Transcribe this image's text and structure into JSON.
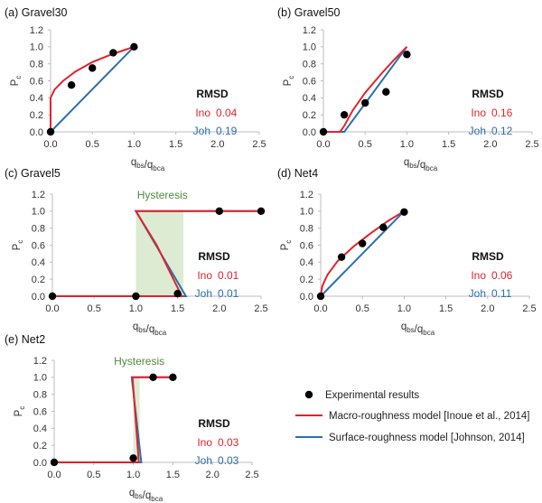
{
  "colors": {
    "ino": "#e0232b",
    "joh": "#2a6fad",
    "points": "#000000",
    "axis": "#bdbdbd",
    "hysteresis_fill": "#dcebd2",
    "hysteresis_text": "#4f8a3c"
  },
  "chart_data": [
    {
      "id": "a",
      "type": "line",
      "panel_label": "(a) Gravel30",
      "xlabel": "q_bs/q_bca",
      "ylabel": "P_c",
      "xlim": [
        0,
        2.5
      ],
      "ylim": [
        0,
        1.2
      ],
      "xticks": [
        "0.0",
        "0.5",
        "1.0",
        "1.5",
        "2.0",
        "2.5"
      ],
      "yticks": [
        "0.0",
        "0.2",
        "0.4",
        "0.6",
        "0.8",
        "1.0",
        "1.2"
      ],
      "experimental": [
        [
          0.0,
          0.0
        ],
        [
          0.25,
          0.55
        ],
        [
          0.5,
          0.75
        ],
        [
          0.75,
          0.93
        ],
        [
          1.0,
          1.0
        ]
      ],
      "ino": [
        [
          0.0,
          0.0
        ],
        [
          0.0,
          0.4
        ],
        [
          0.05,
          0.5
        ],
        [
          0.15,
          0.6
        ],
        [
          0.3,
          0.71
        ],
        [
          0.5,
          0.82
        ],
        [
          0.7,
          0.9
        ],
        [
          0.85,
          0.95
        ],
        [
          1.0,
          1.0
        ]
      ],
      "joh": [
        [
          0.0,
          0.0
        ],
        [
          1.0,
          1.0
        ]
      ],
      "rmsd": {
        "title": "RMSD",
        "ino_label": "Ino",
        "ino_value": "0.04",
        "joh_label": "Joh",
        "joh_value": "0.19"
      }
    },
    {
      "id": "b",
      "type": "line",
      "panel_label": "(b) Gravel50",
      "xlabel": "q_bs/q_bca",
      "ylabel": "P_c",
      "xlim": [
        0,
        2.5
      ],
      "ylim": [
        0,
        1.2
      ],
      "xticks": [
        "0.0",
        "0.5",
        "1.0",
        "1.5",
        "2.0",
        "2.5"
      ],
      "yticks": [
        "0.0",
        "0.2",
        "0.4",
        "0.6",
        "0.8",
        "1.0",
        "1.2"
      ],
      "experimental": [
        [
          0.0,
          0.0
        ],
        [
          0.25,
          0.2
        ],
        [
          0.5,
          0.34
        ],
        [
          0.75,
          0.47
        ],
        [
          1.0,
          0.91
        ]
      ],
      "ino": [
        [
          0.0,
          0.0
        ],
        [
          0.2,
          0.0
        ],
        [
          0.25,
          0.07
        ],
        [
          0.35,
          0.25
        ],
        [
          0.5,
          0.46
        ],
        [
          0.7,
          0.69
        ],
        [
          0.85,
          0.85
        ],
        [
          1.0,
          1.0
        ]
      ],
      "joh": [
        [
          0.0,
          0.0
        ],
        [
          0.25,
          0.0
        ],
        [
          1.0,
          1.0
        ]
      ],
      "rmsd": {
        "title": "RMSD",
        "ino_label": "Ino",
        "ino_value": "0.16",
        "joh_label": "Joh",
        "joh_value": "0.12"
      }
    },
    {
      "id": "c",
      "type": "line",
      "panel_label": "(c) Gravel5",
      "xlabel": "q_bs/q_bca",
      "ylabel": "P_c",
      "xlim": [
        0,
        2.5
      ],
      "ylim": [
        0,
        1.2
      ],
      "xticks": [
        "0.0",
        "0.5",
        "1.0",
        "1.5",
        "2.0",
        "2.5"
      ],
      "yticks": [
        "0.0",
        "0.2",
        "0.4",
        "0.6",
        "0.8",
        "1.0",
        "1.2"
      ],
      "experimental": [
        [
          0.0,
          0.0
        ],
        [
          1.0,
          0.0
        ],
        [
          1.5,
          0.03
        ],
        [
          2.0,
          1.0
        ],
        [
          2.5,
          1.0
        ]
      ],
      "ino": [
        [
          0.0,
          0.0
        ],
        [
          1.55,
          0.0
        ],
        [
          1.5,
          0.1
        ],
        [
          1.4,
          0.3
        ],
        [
          1.25,
          0.6
        ],
        [
          1.0,
          1.0
        ],
        [
          2.5,
          1.0
        ]
      ],
      "joh": [
        [
          0.0,
          0.0
        ],
        [
          1.6,
          0.0
        ],
        [
          1.0,
          1.0
        ],
        [
          2.5,
          1.0
        ]
      ],
      "hysteresis": {
        "label": "Hysteresis",
        "x_range": [
          1.0,
          1.57
        ]
      },
      "rmsd": {
        "title": "RMSD",
        "ino_label": "Ino",
        "ino_value": "0.01",
        "joh_label": "Joh",
        "joh_value": "0.01"
      }
    },
    {
      "id": "d",
      "type": "line",
      "panel_label": "(d) Net4",
      "xlabel": "q_bs/q_bca",
      "ylabel": "P_c",
      "xlim": [
        0,
        2.5
      ],
      "ylim": [
        0,
        1.2
      ],
      "xticks": [
        "0.0",
        "0.5",
        "1.0",
        "1.5",
        "2.0",
        "2.5"
      ],
      "yticks": [
        "0.0",
        "0.2",
        "0.4",
        "0.6",
        "0.8",
        "1.0",
        "1.2"
      ],
      "experimental": [
        [
          0.0,
          0.0
        ],
        [
          0.25,
          0.46
        ],
        [
          0.5,
          0.62
        ],
        [
          0.75,
          0.81
        ],
        [
          1.0,
          0.99
        ]
      ],
      "ino": [
        [
          0.0,
          0.0
        ],
        [
          0.02,
          0.12
        ],
        [
          0.08,
          0.25
        ],
        [
          0.2,
          0.41
        ],
        [
          0.4,
          0.59
        ],
        [
          0.6,
          0.74
        ],
        [
          0.8,
          0.88
        ],
        [
          1.0,
          1.0
        ]
      ],
      "joh": [
        [
          0.0,
          0.0
        ],
        [
          1.0,
          1.0
        ]
      ],
      "rmsd": {
        "title": "RMSD",
        "ino_label": "Ino",
        "ino_value": "0.06",
        "joh_label": "Joh",
        "joh_value": "0.11"
      }
    },
    {
      "id": "e",
      "type": "line",
      "panel_label": "(e) Net2",
      "xlabel": "q_bs/q_bca",
      "ylabel": "P_c",
      "xlim": [
        0,
        2.5
      ],
      "ylim": [
        0,
        1.2
      ],
      "xticks": [
        "0.0",
        "0.5",
        "1.0",
        "1.5",
        "2.0",
        "2.5"
      ],
      "yticks": [
        "0.0",
        "0.2",
        "0.4",
        "0.6",
        "0.8",
        "1.0",
        "1.2"
      ],
      "experimental": [
        [
          0.0,
          0.0
        ],
        [
          1.0,
          0.05
        ],
        [
          1.25,
          1.0
        ],
        [
          1.5,
          1.0
        ]
      ],
      "ino": [
        [
          0.0,
          0.0
        ],
        [
          1.07,
          0.0
        ],
        [
          0.99,
          1.0
        ],
        [
          1.5,
          1.0
        ]
      ],
      "joh": [
        [
          0.0,
          0.0
        ],
        [
          1.1,
          0.0
        ],
        [
          0.98,
          1.0
        ],
        [
          1.5,
          1.0
        ]
      ],
      "hysteresis": {
        "label": "Hysteresis",
        "x_range": [
          1.0,
          1.08
        ]
      },
      "rmsd": {
        "title": "RMSD",
        "ino_label": "Ino",
        "ino_value": "0.03",
        "joh_label": "Joh",
        "joh_value": "0.03"
      }
    }
  ],
  "legend": {
    "experimental": "Experimental results",
    "ino": "Macro-roughness model [Inoue et al., 2014]",
    "joh": "Surface-roughness model [Johnson, 2014]"
  }
}
